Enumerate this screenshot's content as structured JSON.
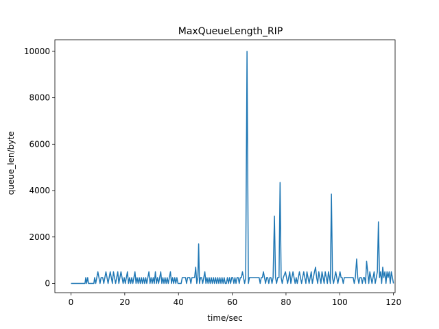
{
  "chart_data": {
    "type": "line",
    "title": "MaxQueueLength_RIP",
    "xlabel": "time/sec",
    "ylabel": "queue_len/byte",
    "xlim": [
      -6,
      120.6
    ],
    "ylim": [
      -400,
      10500
    ],
    "xticks": [
      0,
      20,
      40,
      60,
      80,
      100,
      120
    ],
    "yticks": [
      0,
      2000,
      4000,
      6000,
      8000,
      10000
    ],
    "grid": false,
    "series": [
      {
        "color": "#1f77b4",
        "points": [
          [
            0,
            0
          ],
          [
            5.2,
            0
          ],
          [
            5.5,
            250
          ],
          [
            5.8,
            0
          ],
          [
            6.2,
            250
          ],
          [
            6.5,
            0
          ],
          [
            8.5,
            0
          ],
          [
            8.8,
            250
          ],
          [
            9.2,
            0
          ],
          [
            9.6,
            250
          ],
          [
            10,
            500
          ],
          [
            10.4,
            250
          ],
          [
            10.8,
            0
          ],
          [
            11.2,
            250
          ],
          [
            11.8,
            250
          ],
          [
            12.2,
            0
          ],
          [
            12.6,
            250
          ],
          [
            13,
            500
          ],
          [
            13.4,
            250
          ],
          [
            13.8,
            0
          ],
          [
            14.2,
            250
          ],
          [
            14.6,
            500
          ],
          [
            15,
            250
          ],
          [
            15.4,
            0
          ],
          [
            15.8,
            500
          ],
          [
            16.2,
            250
          ],
          [
            16.6,
            0
          ],
          [
            17,
            250
          ],
          [
            17.4,
            500
          ],
          [
            17.8,
            0
          ],
          [
            18.2,
            250
          ],
          [
            18.6,
            500
          ],
          [
            19,
            250
          ],
          [
            19.4,
            0
          ],
          [
            19.8,
            250
          ],
          [
            20.2,
            0
          ],
          [
            20.6,
            250
          ],
          [
            21,
            500
          ],
          [
            21.4,
            0
          ],
          [
            21.8,
            250
          ],
          [
            22.2,
            0
          ],
          [
            22.6,
            250
          ],
          [
            23,
            0
          ],
          [
            23.4,
            250
          ],
          [
            23.8,
            500
          ],
          [
            24.2,
            0
          ],
          [
            24.6,
            250
          ],
          [
            25,
            0
          ],
          [
            25.4,
            250
          ],
          [
            25.8,
            0
          ],
          [
            26.2,
            250
          ],
          [
            26.6,
            0
          ],
          [
            27,
            250
          ],
          [
            27.4,
            0
          ],
          [
            27.8,
            250
          ],
          [
            28.2,
            0
          ],
          [
            28.6,
            250
          ],
          [
            29,
            500
          ],
          [
            29.4,
            0
          ],
          [
            29.8,
            250
          ],
          [
            30.2,
            0
          ],
          [
            30.6,
            250
          ],
          [
            31,
            0
          ],
          [
            31.4,
            500
          ],
          [
            31.8,
            0
          ],
          [
            32.2,
            250
          ],
          [
            32.6,
            0
          ],
          [
            33,
            250
          ],
          [
            33.4,
            500
          ],
          [
            33.8,
            0
          ],
          [
            34.2,
            250
          ],
          [
            34.6,
            0
          ],
          [
            35,
            250
          ],
          [
            35.4,
            0
          ],
          [
            35.8,
            250
          ],
          [
            36.2,
            0
          ],
          [
            36.6,
            250
          ],
          [
            37,
            500
          ],
          [
            37.4,
            0
          ],
          [
            37.8,
            250
          ],
          [
            38.2,
            0
          ],
          [
            38.6,
            250
          ],
          [
            39,
            0
          ],
          [
            39.4,
            250
          ],
          [
            39.8,
            0
          ],
          [
            40.2,
            0
          ],
          [
            41,
            0
          ],
          [
            41.4,
            250
          ],
          [
            42.6,
            250
          ],
          [
            43,
            0
          ],
          [
            43.4,
            250
          ],
          [
            44.2,
            250
          ],
          [
            44.6,
            0
          ],
          [
            45,
            250
          ],
          [
            46,
            250
          ],
          [
            46.4,
            700
          ],
          [
            46.8,
            0
          ],
          [
            47.2,
            250
          ],
          [
            47.5,
            1700
          ],
          [
            47.8,
            0
          ],
          [
            48.2,
            250
          ],
          [
            48.6,
            250
          ],
          [
            49,
            0
          ],
          [
            49.4,
            250
          ],
          [
            49.8,
            500
          ],
          [
            50.2,
            0
          ],
          [
            50.6,
            250
          ],
          [
            51,
            0
          ],
          [
            51.4,
            250
          ],
          [
            51.8,
            0
          ],
          [
            52.2,
            250
          ],
          [
            52.6,
            0
          ],
          [
            53,
            250
          ],
          [
            53.4,
            0
          ],
          [
            53.8,
            250
          ],
          [
            54.2,
            0
          ],
          [
            54.6,
            250
          ],
          [
            55,
            0
          ],
          [
            55.4,
            250
          ],
          [
            55.8,
            0
          ],
          [
            56.2,
            250
          ],
          [
            56.6,
            0
          ],
          [
            57,
            250
          ],
          [
            57.4,
            0
          ],
          [
            57.8,
            0
          ],
          [
            58.2,
            250
          ],
          [
            58.6,
            0
          ],
          [
            59,
            250
          ],
          [
            59.4,
            0
          ],
          [
            59.8,
            250
          ],
          [
            60.2,
            250
          ],
          [
            60.6,
            0
          ],
          [
            61,
            250
          ],
          [
            61.4,
            0
          ],
          [
            61.8,
            250
          ],
          [
            62.2,
            250
          ],
          [
            62.6,
            0
          ],
          [
            63,
            250
          ],
          [
            63.4,
            250
          ],
          [
            63.8,
            500
          ],
          [
            64.2,
            250
          ],
          [
            64.6,
            0
          ],
          [
            65,
            250
          ],
          [
            65.5,
            10000
          ],
          [
            66,
            0
          ],
          [
            66.4,
            250
          ],
          [
            70,
            250
          ],
          [
            70.4,
            0
          ],
          [
            70.8,
            250
          ],
          [
            71.2,
            250
          ],
          [
            71.6,
            500
          ],
          [
            72,
            250
          ],
          [
            72.4,
            0
          ],
          [
            72.8,
            250
          ],
          [
            73.2,
            250
          ],
          [
            73.6,
            0
          ],
          [
            74,
            250
          ],
          [
            74.4,
            250
          ],
          [
            74.8,
            0
          ],
          [
            75.2,
            250
          ],
          [
            75.7,
            2900
          ],
          [
            76.1,
            250
          ],
          [
            76.5,
            0
          ],
          [
            76.9,
            250
          ],
          [
            77.4,
            250
          ],
          [
            77.8,
            4350
          ],
          [
            78.2,
            250
          ],
          [
            78.6,
            0
          ],
          [
            79,
            250
          ],
          [
            79.8,
            500
          ],
          [
            80.2,
            250
          ],
          [
            80.6,
            0
          ],
          [
            81,
            250
          ],
          [
            81.4,
            500
          ],
          [
            81.8,
            0
          ],
          [
            82.2,
            250
          ],
          [
            82.6,
            500
          ],
          [
            83,
            250
          ],
          [
            83.4,
            0
          ],
          [
            83.8,
            250
          ],
          [
            84.2,
            0
          ],
          [
            84.6,
            250
          ],
          [
            85,
            500
          ],
          [
            85.4,
            250
          ],
          [
            85.8,
            0
          ],
          [
            86.2,
            250
          ],
          [
            86.6,
            500
          ],
          [
            87,
            250
          ],
          [
            87.4,
            0
          ],
          [
            87.8,
            500
          ],
          [
            88.2,
            250
          ],
          [
            88.6,
            0
          ],
          [
            89,
            250
          ],
          [
            89.4,
            500
          ],
          [
            89.8,
            0
          ],
          [
            90.2,
            250
          ],
          [
            90.6,
            500
          ],
          [
            91,
            700
          ],
          [
            91.4,
            250
          ],
          [
            91.8,
            0
          ],
          [
            92.2,
            500
          ],
          [
            92.6,
            250
          ],
          [
            93,
            0
          ],
          [
            93.4,
            500
          ],
          [
            93.8,
            250
          ],
          [
            94.2,
            0
          ],
          [
            94.6,
            500
          ],
          [
            95,
            250
          ],
          [
            95.4,
            0
          ],
          [
            95.8,
            500
          ],
          [
            96.2,
            250
          ],
          [
            96.5,
            0
          ],
          [
            96.9,
            3850
          ],
          [
            97.3,
            250
          ],
          [
            97.7,
            0
          ],
          [
            98.1,
            250
          ],
          [
            98.5,
            500
          ],
          [
            98.9,
            250
          ],
          [
            99.3,
            0
          ],
          [
            99.7,
            250
          ],
          [
            100.1,
            500
          ],
          [
            100.5,
            250
          ],
          [
            100.9,
            250
          ],
          [
            101.3,
            0
          ],
          [
            101.7,
            250
          ],
          [
            105,
            250
          ],
          [
            105.4,
            0
          ],
          [
            105.8,
            250
          ],
          [
            106.3,
            1050
          ],
          [
            106.7,
            250
          ],
          [
            107.1,
            0
          ],
          [
            107.5,
            250
          ],
          [
            108,
            250
          ],
          [
            108.4,
            0
          ],
          [
            108.8,
            250
          ],
          [
            109.2,
            250
          ],
          [
            109.6,
            0
          ],
          [
            110,
            950
          ],
          [
            110.4,
            500
          ],
          [
            110.8,
            0
          ],
          [
            111.2,
            500
          ],
          [
            111.6,
            250
          ],
          [
            112,
            0
          ],
          [
            112.4,
            250
          ],
          [
            112.8,
            500
          ],
          [
            113.2,
            0
          ],
          [
            113.6,
            250
          ],
          [
            114,
            500
          ],
          [
            114.4,
            2650
          ],
          [
            114.8,
            250
          ],
          [
            115.2,
            500
          ],
          [
            115.6,
            0
          ],
          [
            116,
            700
          ],
          [
            116.4,
            250
          ],
          [
            116.8,
            500
          ],
          [
            117.2,
            0
          ],
          [
            117.6,
            500
          ],
          [
            118,
            250
          ],
          [
            118.4,
            500
          ],
          [
            118.8,
            0
          ],
          [
            119.2,
            500
          ],
          [
            119.6,
            250
          ],
          [
            120,
            0
          ]
        ]
      }
    ]
  }
}
